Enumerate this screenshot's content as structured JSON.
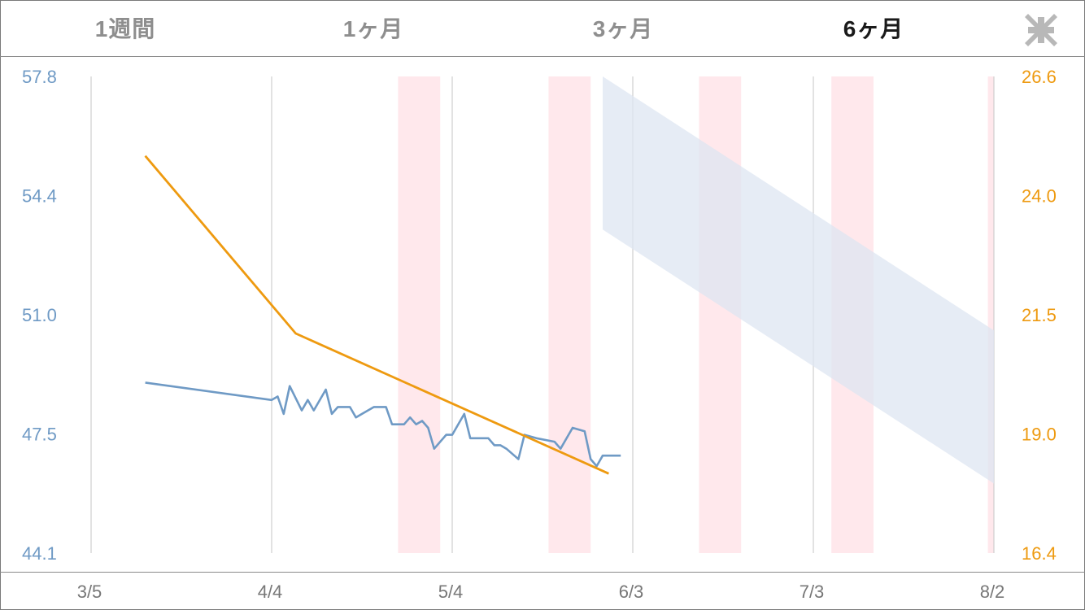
{
  "tabs": [
    {
      "label": "1週間",
      "active": false
    },
    {
      "label": "1ヶ月",
      "active": false
    },
    {
      "label": "3ヶ月",
      "active": false
    },
    {
      "label": "6ヶ月",
      "active": true
    }
  ],
  "collapse_icon": "collapse-arrows-icon",
  "colors": {
    "weight": "#6f9ac5",
    "bodyfat": "#ee9a10",
    "period_band": "#ffe8ec",
    "target_band": "#dde6f2",
    "grid": "#cfcfcf"
  },
  "chart_data": {
    "type": "line",
    "x_axis": {
      "type": "date",
      "ticks": [
        "3/5",
        "4/4",
        "5/4",
        "6/3",
        "7/3",
        "8/2"
      ]
    },
    "y_left": {
      "range": [
        44.1,
        57.8
      ],
      "ticks": [
        "57.8",
        "54.4",
        "51.0",
        "47.5",
        "44.1"
      ]
    },
    "y_right": {
      "range": [
        16.4,
        26.6
      ],
      "ticks": [
        "26.6",
        "24.0",
        "21.5",
        "19.0",
        "16.4"
      ]
    },
    "series": [
      {
        "axis": "left",
        "color": "#6f9ac5",
        "x": [
          "3/14",
          "4/4",
          "4/5",
          "4/6",
          "4/7",
          "4/9",
          "4/10",
          "4/11",
          "4/13",
          "4/14",
          "4/15",
          "4/17",
          "4/18",
          "4/20",
          "4/21",
          "4/23",
          "4/24",
          "4/26",
          "4/27",
          "4/28",
          "4/29",
          "4/30",
          "5/1",
          "5/3",
          "5/4",
          "5/6",
          "5/7",
          "5/8",
          "5/10",
          "5/11",
          "5/12",
          "5/13",
          "5/15",
          "5/16",
          "5/18",
          "5/21",
          "5/22",
          "5/24",
          "5/26",
          "5/27",
          "5/28",
          "5/29",
          "5/30",
          "5/31",
          "6/1"
        ],
        "y": [
          49.0,
          48.5,
          48.6,
          48.1,
          48.9,
          48.2,
          48.5,
          48.2,
          48.8,
          48.1,
          48.3,
          48.3,
          48.0,
          48.2,
          48.3,
          48.3,
          47.8,
          47.8,
          48.0,
          47.8,
          47.9,
          47.7,
          47.1,
          47.5,
          47.5,
          48.1,
          47.4,
          47.4,
          47.4,
          47.2,
          47.2,
          47.1,
          46.8,
          47.5,
          47.4,
          47.3,
          47.1,
          47.7,
          47.6,
          46.8,
          46.6,
          46.9,
          46.9,
          46.9,
          46.9
        ]
      },
      {
        "axis": "right",
        "color": "#ee9a10",
        "x": [
          "3/14",
          "4/8",
          "5/30"
        ],
        "y": [
          24.9,
          21.1,
          18.1
        ]
      }
    ],
    "period_bands": [
      [
        "4/25",
        "5/2"
      ],
      [
        "5/20",
        "5/27"
      ],
      [
        "6/14",
        "6/21"
      ],
      [
        "7/6",
        "7/13"
      ],
      [
        "8/1",
        "8/2"
      ]
    ],
    "target_band": {
      "x": [
        "5/29",
        "8/2"
      ],
      "upper": [
        57.8,
        50.5
      ],
      "lower": [
        53.4,
        46.1
      ]
    }
  }
}
